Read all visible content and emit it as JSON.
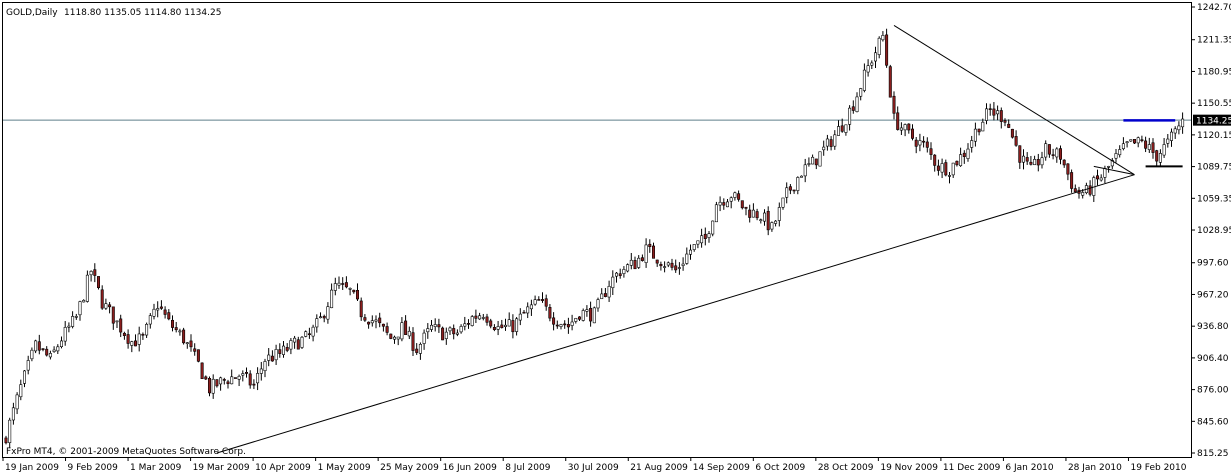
{
  "window": {
    "symbol_title": "GOLD,Daily",
    "ohlc": "1118.80 1135.05 1114.80 1134.25",
    "copyright": "FxPro MT4, © 2001-2009 MetaQuotes Software Corp."
  },
  "price_label": "1134.25",
  "colors": {
    "bull_candle": "#ffffff",
    "bear_candle": "#8b1e1e",
    "wick": "#000000",
    "grid_line": "#5f7f8a",
    "bid_line_box": "#000000",
    "trendline": "#000000",
    "marker_line": "#0000cc"
  },
  "chart_data": {
    "type": "candlestick",
    "title": "GOLD,Daily",
    "ylim": [
      815.25,
      1242.7
    ],
    "y_ticks": [
      "1242.70",
      "1211.35",
      "1180.95",
      "1150.55",
      "1120.15",
      "1089.75",
      "1059.35",
      "1028.95",
      "997.60",
      "967.20",
      "936.80",
      "906.40",
      "876.00",
      "845.60",
      "815.25"
    ],
    "x_ticks": [
      "19 Jan 2009",
      "9 Feb 2009",
      "1 Mar 2009",
      "19 Mar 2009",
      "10 Apr 2009",
      "1 May 2009",
      "25 May 2009",
      "16 Jun 2009",
      "8 Jul 2009",
      "30 Jul 2009",
      "21 Aug 2009",
      "14 Sep 2009",
      "6 Oct 2009",
      "28 Oct 2009",
      "19 Nov 2009",
      "11 Dec 2009",
      "6 Jan 2010",
      "28 Jan 2010",
      "19 Feb 2010"
    ],
    "current_price": 1134.25,
    "close_path": [
      [
        0,
        832
      ],
      [
        4,
        878
      ],
      [
        8,
        918
      ],
      [
        12,
        905
      ],
      [
        15,
        925
      ],
      [
        19,
        945
      ],
      [
        23,
        990
      ],
      [
        26,
        960
      ],
      [
        30,
        940
      ],
      [
        34,
        922
      ],
      [
        37,
        925
      ],
      [
        41,
        958
      ],
      [
        44,
        940
      ],
      [
        48,
        925
      ],
      [
        52,
        900
      ],
      [
        55,
        877
      ],
      [
        59,
        885
      ],
      [
        63,
        890
      ],
      [
        67,
        880
      ],
      [
        70,
        905
      ],
      [
        74,
        910
      ],
      [
        78,
        920
      ],
      [
        82,
        927
      ],
      [
        85,
        943
      ],
      [
        89,
        975
      ],
      [
        93,
        970
      ],
      [
        96,
        950
      ],
      [
        100,
        940
      ],
      [
        104,
        925
      ],
      [
        107,
        935
      ],
      [
        111,
        915
      ],
      [
        115,
        935
      ],
      [
        118,
        930
      ],
      [
        122,
        930
      ],
      [
        126,
        945
      ],
      [
        129,
        950
      ],
      [
        133,
        935
      ],
      [
        137,
        937
      ],
      [
        141,
        952
      ],
      [
        144,
        960
      ],
      [
        148,
        945
      ],
      [
        152,
        937
      ],
      [
        155,
        950
      ],
      [
        159,
        948
      ],
      [
        163,
        978
      ],
      [
        166,
        990
      ],
      [
        170,
        997
      ],
      [
        173,
        1010
      ],
      [
        177,
        1000
      ],
      [
        181,
        990
      ],
      [
        185,
        1010
      ],
      [
        189,
        1020
      ],
      [
        192,
        1055
      ],
      [
        196,
        1063
      ],
      [
        200,
        1048
      ],
      [
        204,
        1043
      ],
      [
        207,
        1030
      ],
      [
        211,
        1063
      ],
      [
        215,
        1085
      ],
      [
        218,
        1093
      ],
      [
        222,
        1110
      ],
      [
        226,
        1130
      ],
      [
        229,
        1150
      ],
      [
        233,
        1185
      ],
      [
        237,
        1215
      ],
      [
        240,
        1135
      ],
      [
        244,
        1120
      ],
      [
        248,
        1110
      ],
      [
        252,
        1090
      ],
      [
        255,
        1088
      ],
      [
        259,
        1103
      ],
      [
        263,
        1130
      ],
      [
        266,
        1143
      ],
      [
        270,
        1137
      ],
      [
        274,
        1100
      ],
      [
        277,
        1085
      ],
      [
        281,
        1105
      ],
      [
        285,
        1100
      ],
      [
        289,
        1065
      ],
      [
        292,
        1065
      ],
      [
        296,
        1080
      ],
      [
        300,
        1098
      ],
      [
        303,
        1110
      ],
      [
        307,
        1113
      ],
      [
        311,
        1100
      ],
      [
        314,
        1112
      ],
      [
        318,
        1134
      ]
    ],
    "trendlines": [
      {
        "points": [
          [
            57,
            815.25
          ],
          [
            305,
            1082.0
          ]
        ]
      },
      {
        "points": [
          [
            240,
            1225.0
          ],
          [
            305,
            1082.0
          ]
        ]
      },
      {
        "points": [
          [
            294,
            1090.0
          ],
          [
            305,
            1082.0
          ]
        ]
      }
    ],
    "segments": [
      {
        "points": [
          [
            302,
            1134.0
          ],
          [
            316,
            1134.0
          ]
        ]
      },
      {
        "points": [
          [
            308,
            1090.0
          ],
          [
            318,
            1090.0
          ]
        ]
      }
    ]
  }
}
